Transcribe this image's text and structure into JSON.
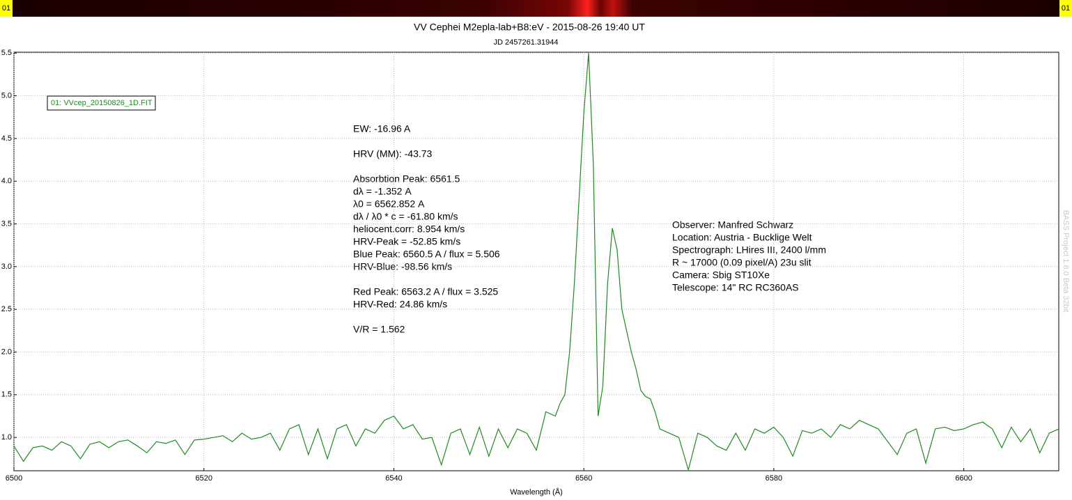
{
  "chart_data": {
    "type": "line",
    "title": "VV Cephei M2epla-lab+B8:eV - 2015-08-26 19:40 UT",
    "subtitle": "JD 2457261.31944",
    "x_label": "Wavelength (Å)",
    "strip_label": "01",
    "watermark": "BASS Project 1.8.0 Beta 32bit",
    "grid": true,
    "legend": "top-left",
    "xlim": [
      6500,
      6610
    ],
    "ylim": [
      0.61,
      5.51
    ],
    "xticks": [
      6500,
      6520,
      6540,
      6560,
      6580,
      6600
    ],
    "yticks": [
      {
        "value": 1,
        "label": "1.0"
      },
      1.5,
      {
        "value": 2,
        "label": "2.0"
      },
      2.5,
      {
        "value": 3,
        "label": "3.0"
      },
      3.5,
      {
        "value": 4,
        "label": "4.0"
      },
      4.5,
      {
        "value": 5,
        "label": "5.0"
      },
      5.5
    ],
    "annotations": [
      "EW: -16.96 A",
      "HRV (MM): -43.73",
      "Absorbtion Peak: 6561.5",
      "dλ = -1.352 A",
      "λ0 = 6562.852 A",
      "dλ / λ0 * c = -61.80 km/s",
      "heliocent.corr: 8.954 km/s",
      "HRV-Peak = -52.85 km/s",
      "Blue Peak: 6560.5 A / flux = 5.506",
      "HRV-Blue: -98.56 km/s",
      "Red Peak: 6563.2 A / flux = 3.525",
      "HRV-Red: 24.86 km/s",
      "V/R = 1.562"
    ],
    "observer_info": [
      "Observer: Manfred Schwarz",
      "Location: Austria - Bucklige Welt",
      "Spectrograph: LHires III, 2400 l/mm",
      "R ~ 17000 (0.09 pixel/A) 23u slit",
      "Camera: Sbig ST10Xe",
      "Telescope: 14\" RC RC360AS"
    ],
    "x": [
      6500,
      6501,
      6502,
      6503,
      6504,
      6505,
      6506,
      6507,
      6508,
      6509,
      6510,
      6511,
      6512,
      6513,
      6514,
      6515,
      6516,
      6517,
      6518,
      6519,
      6520,
      6521,
      6522,
      6523,
      6524,
      6525,
      6526,
      6527,
      6528,
      6529,
      6530,
      6531,
      6532,
      6533,
      6534,
      6535,
      6536,
      6537,
      6538,
      6539,
      6540,
      6541,
      6542,
      6543,
      6544,
      6545,
      6546,
      6547,
      6548,
      6549,
      6550,
      6551,
      6552,
      6553,
      6554,
      6555,
      6556,
      6557,
      6557.5,
      6558,
      6558.5,
      6559,
      6559.5,
      6560,
      6560.5,
      6561,
      6561.5,
      6562,
      6562.5,
      6563,
      6563.5,
      6564,
      6564.5,
      6565,
      6565.5,
      6566,
      6566.5,
      6567,
      6567.5,
      6568,
      6569,
      6570,
      6571,
      6572,
      6573,
      6574,
      6575,
      6576,
      6577,
      6578,
      6579,
      6580,
      6581,
      6582,
      6583,
      6584,
      6585,
      6586,
      6587,
      6588,
      6589,
      6590,
      6591,
      6592,
      6593,
      6594,
      6595,
      6596,
      6597,
      6598,
      6599,
      6600,
      6601,
      6602,
      6603,
      6604,
      6605,
      6606,
      6607,
      6608,
      6609,
      6610
    ],
    "series": [
      {
        "name": "01: VVcep_20150826_1D.FIT",
        "color": "#1f8a1f",
        "values": [
          0.9,
          0.72,
          0.88,
          0.9,
          0.85,
          0.95,
          0.9,
          0.75,
          0.92,
          0.95,
          0.88,
          0.95,
          0.97,
          0.9,
          0.82,
          0.95,
          0.93,
          0.97,
          0.8,
          0.97,
          0.98,
          1.0,
          1.02,
          0.95,
          1.05,
          0.98,
          1.0,
          1.05,
          0.85,
          1.1,
          1.15,
          0.8,
          1.1,
          0.75,
          1.1,
          1.15,
          0.9,
          1.1,
          1.05,
          1.2,
          1.25,
          1.1,
          1.15,
          0.98,
          1.0,
          0.68,
          1.05,
          1.1,
          0.8,
          1.12,
          0.78,
          1.1,
          0.88,
          1.1,
          1.05,
          0.85,
          1.3,
          1.25,
          1.4,
          1.5,
          2.0,
          2.8,
          3.8,
          4.8,
          5.5,
          4.2,
          1.25,
          1.6,
          2.8,
          3.45,
          3.2,
          2.5,
          2.25,
          2.0,
          1.8,
          1.55,
          1.48,
          1.45,
          1.3,
          1.1,
          1.05,
          1.0,
          0.62,
          1.05,
          1.0,
          0.9,
          0.85,
          1.05,
          0.85,
          1.1,
          1.05,
          1.12,
          1.0,
          0.78,
          1.08,
          1.05,
          1.1,
          1.0,
          1.15,
          1.1,
          1.2,
          1.15,
          1.1,
          0.95,
          0.8,
          1.05,
          1.1,
          0.7,
          1.1,
          1.12,
          1.08,
          1.1,
          1.15,
          1.18,
          1.1,
          0.88,
          1.12,
          0.95,
          1.1,
          0.82,
          1.05,
          1.1
        ]
      }
    ]
  }
}
